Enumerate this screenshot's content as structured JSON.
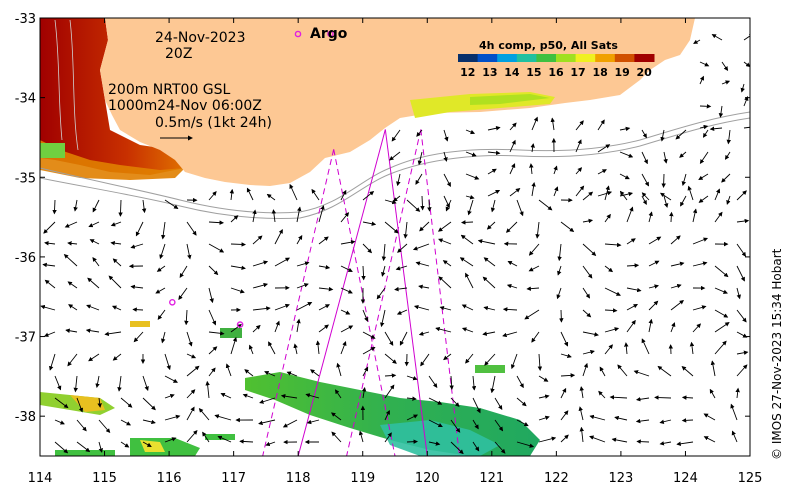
{
  "annotations": {
    "date": "24-Nov-2023",
    "hour": "20Z",
    "contour_line": "200m  NRT00 GSL",
    "contour_line2": "1000m24-Nov 06:00Z",
    "scale_label": "0.5m/s (1kt 24h)",
    "legend_argo": "Argo"
  },
  "colorbar": {
    "title": "4h comp, p50, All Sats",
    "ticks": [
      "12",
      "13",
      "14",
      "15",
      "16",
      "17",
      "18",
      "19",
      "20"
    ],
    "colors": [
      "#08306b",
      "#0050c8",
      "#00a0e0",
      "#20c0a0",
      "#40c040",
      "#a0e020",
      "#f0f020",
      "#f0a000",
      "#d05000",
      "#a00000"
    ]
  },
  "credit": "© IMOS 27-Nov-2023 15:34 Hobart",
  "colors": {
    "land": "#fdc894",
    "argo": "#e020e0",
    "track": "#d000d0"
  },
  "chart_data": {
    "type": "map",
    "x_ticks": [
      "114",
      "115",
      "116",
      "117",
      "118",
      "119",
      "120",
      "121",
      "122",
      "123",
      "124",
      "125"
    ],
    "y_ticks": [
      "-33",
      "-34",
      "-35",
      "-36",
      "-37",
      "-38"
    ],
    "xlim": [
      114,
      125
    ],
    "ylim": [
      -38.5,
      -33
    ],
    "argo_floats": [
      {
        "lon": 116.05,
        "lat": -36.57
      },
      {
        "lon": 117.1,
        "lat": -36.85
      },
      {
        "lon": 118.5,
        "lat": -33.2
      }
    ],
    "tracks": [
      {
        "from": [
          118.55,
          -34.65
        ],
        "to": [
          117.45,
          -38.5
        ],
        "style": "dashed"
      },
      {
        "from": [
          118.55,
          -34.65
        ],
        "to": [
          119.5,
          -38.5
        ],
        "style": "dashed"
      },
      {
        "from": [
          119.35,
          -34.4
        ],
        "to": [
          118.0,
          -38.5
        ],
        "style": "solid"
      },
      {
        "from": [
          119.35,
          -34.4
        ],
        "to": [
          120.0,
          -38.5
        ],
        "style": "solid"
      },
      {
        "from": [
          119.9,
          -34.4
        ],
        "to": [
          118.75,
          -38.5
        ],
        "style": "dashed"
      },
      {
        "from": [
          119.9,
          -34.4
        ],
        "to": [
          120.5,
          -38.5
        ],
        "style": "dashed"
      }
    ]
  }
}
